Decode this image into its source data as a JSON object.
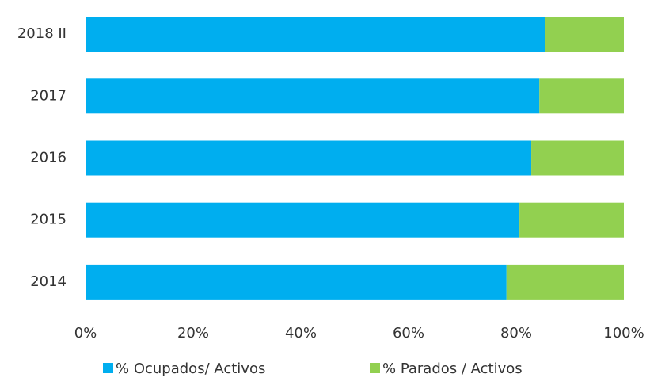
{
  "chart_data": {
    "type": "bar",
    "orientation": "horizontal",
    "stacked": true,
    "categories": [
      "2018 II",
      "2017",
      "2016",
      "2015",
      "2014"
    ],
    "series": [
      {
        "name": "% Ocupados/ Activos",
        "color": "#00aeef",
        "values": [
          85.3,
          84.3,
          82.8,
          80.6,
          78.2
        ]
      },
      {
        "name": "% Parados / Activos",
        "color": "#92d050",
        "values": [
          14.7,
          15.7,
          17.2,
          19.4,
          21.8
        ]
      }
    ],
    "xlim": [
      0,
      100
    ],
    "xticks": [
      {
        "value": 0,
        "label": "0%"
      },
      {
        "value": 20,
        "label": "20%"
      },
      {
        "value": 40,
        "label": "40%"
      },
      {
        "value": 60,
        "label": "60%"
      },
      {
        "value": 80,
        "label": "80%"
      },
      {
        "value": 100,
        "label": "100%"
      }
    ],
    "grid": false,
    "legend": "bottom"
  }
}
